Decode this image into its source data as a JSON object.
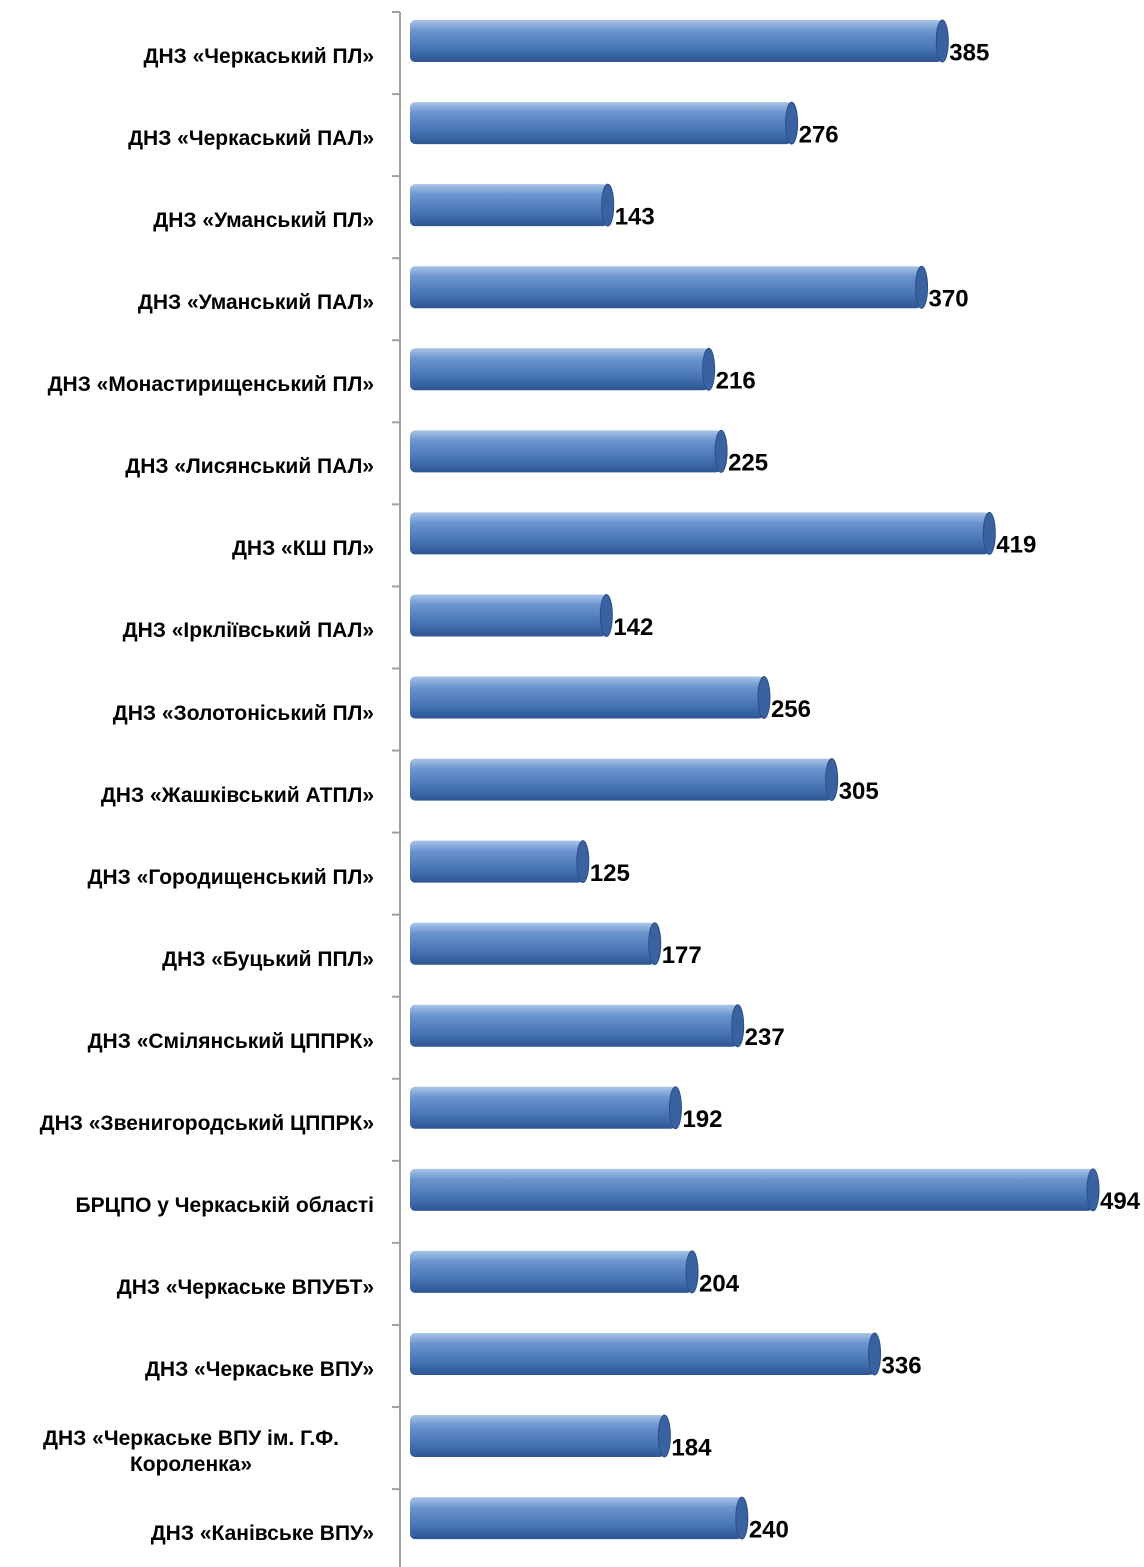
{
  "chart_data": {
    "type": "bar",
    "orientation": "horizontal",
    "color": "#4f81bd",
    "categories": [
      "ДНЗ «Черкаський ПЛ»",
      "ДНЗ «Черкаський ПАЛ»",
      "ДНЗ «Уманський ПЛ»",
      "ДНЗ «Уманський ПАЛ»",
      "ДНЗ «Монастирищенський ПЛ»",
      "ДНЗ «Лисянський ПАЛ»",
      "ДНЗ «КШ ПЛ»",
      "ДНЗ «Ірклiївський ПАЛ»",
      "ДНЗ «Золотонiський ПЛ»",
      "ДНЗ «Жашкiвський АТПЛ»",
      "ДНЗ «Городищенський ПЛ»",
      "ДНЗ «Буцький ППЛ»",
      "ДНЗ «Смiлянський ЦППРК»",
      "ДНЗ «Звенигородський ЦППРК»",
      "БРЦПО у Черкаськiй областi",
      "ДНЗ «Черкаське ВПУБТ»",
      "ДНЗ «Черкаське ВПУ»",
      "ДНЗ «Черкаське ВПУ iм. Г.Ф. Короленка»",
      "ДНЗ «Канiвське ВПУ»"
    ],
    "values": [
      385,
      276,
      143,
      370,
      216,
      225,
      419,
      142,
      256,
      305,
      125,
      177,
      237,
      192,
      494,
      204,
      336,
      184,
      240
    ]
  }
}
